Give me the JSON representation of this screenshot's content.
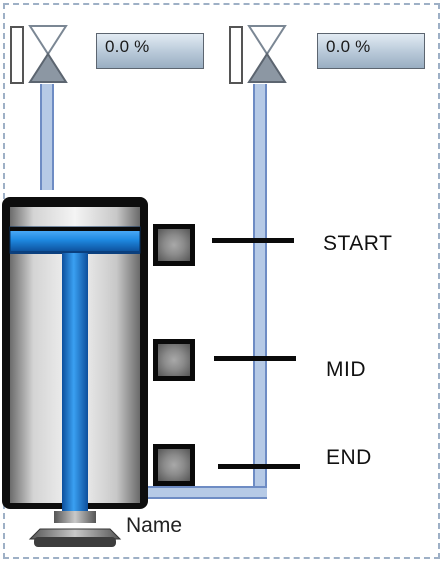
{
  "valves": [
    {
      "name": "valve-left",
      "value_text": "0.0 %",
      "percent": 0.0
    },
    {
      "name": "valve-right",
      "value_text": "0.0 %",
      "percent": 0.0
    }
  ],
  "cylinder": {
    "name_label": "Name"
  },
  "positions": [
    {
      "label": "START"
    },
    {
      "label": "MID"
    },
    {
      "label": "END"
    }
  ],
  "colors": {
    "pipe": "#b6cae6",
    "piston_blue": "#1e88e0",
    "frame_border": "#9eb0c6"
  }
}
